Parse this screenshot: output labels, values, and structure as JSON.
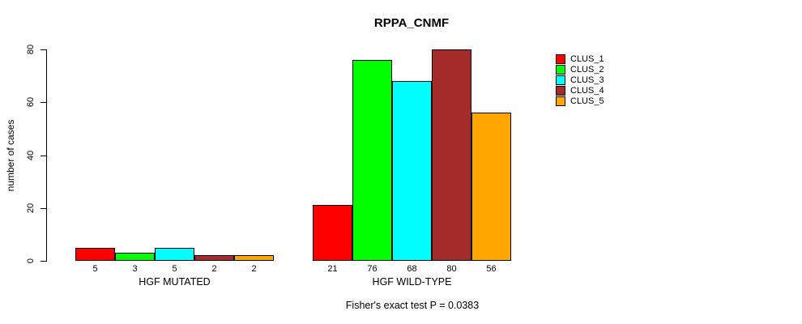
{
  "title": "RPPA_CNMF",
  "caption": "Fisher's exact test P = 0.0383",
  "chart_data": {
    "type": "bar",
    "title": "RPPA_CNMF",
    "categories": [
      "HGF MUTATED",
      "HGF WILD-TYPE"
    ],
    "series": [
      {
        "name": "CLUS_1",
        "color": "#FF0000",
        "values": [
          5,
          21
        ]
      },
      {
        "name": "CLUS_2",
        "color": "#00FF00",
        "values": [
          3,
          76
        ]
      },
      {
        "name": "CLUS_3",
        "color": "#00FFFF",
        "values": [
          5,
          68
        ]
      },
      {
        "name": "CLUS_4",
        "color": "#A52A2A",
        "values": [
          2,
          80
        ]
      },
      {
        "name": "CLUS_5",
        "color": "#FFA500",
        "values": [
          2,
          56
        ]
      }
    ],
    "xlabel": "",
    "ylabel": "number of cases",
    "ylim": [
      0,
      80
    ],
    "yticks": [
      0,
      20,
      40,
      60,
      80
    ],
    "bar_value_labels": true,
    "grid": false,
    "legend_position": "right",
    "annotation": "Fisher's exact test P = 0.0383"
  }
}
